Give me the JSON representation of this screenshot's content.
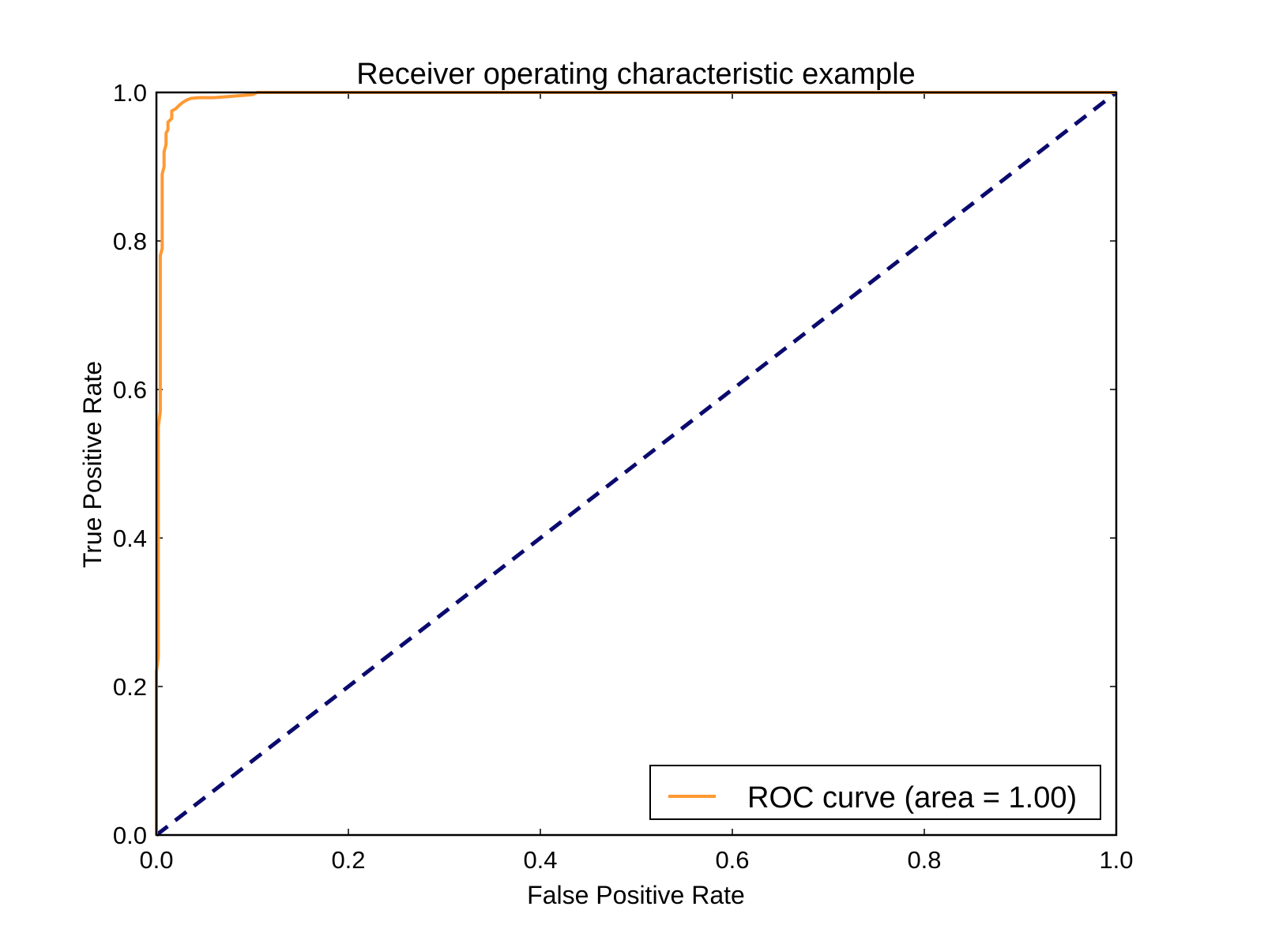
{
  "chart_data": {
    "type": "line",
    "title": "Receiver operating characteristic example",
    "xlabel": "False Positive Rate",
    "ylabel": "True Positive Rate",
    "xlim": [
      0.0,
      1.0
    ],
    "ylim": [
      0.0,
      1.0
    ],
    "xticks": [
      "0.0",
      "0.2",
      "0.4",
      "0.6",
      "0.8",
      "1.0"
    ],
    "yticks": [
      "0.0",
      "0.2",
      "0.4",
      "0.6",
      "0.8",
      "1.0"
    ],
    "grid": false,
    "legend_position": "lower-right",
    "series": [
      {
        "name": "ROC curve (area = 1.00)",
        "color": "#ff9933",
        "style": "solid",
        "points": [
          [
            0.0,
            0.0
          ],
          [
            0.0,
            0.22
          ],
          [
            0.002,
            0.24
          ],
          [
            0.002,
            0.55
          ],
          [
            0.004,
            0.57
          ],
          [
            0.004,
            0.78
          ],
          [
            0.006,
            0.79
          ],
          [
            0.006,
            0.89
          ],
          [
            0.008,
            0.9
          ],
          [
            0.008,
            0.92
          ],
          [
            0.01,
            0.93
          ],
          [
            0.01,
            0.945
          ],
          [
            0.012,
            0.95
          ],
          [
            0.012,
            0.96
          ],
          [
            0.016,
            0.965
          ],
          [
            0.016,
            0.975
          ],
          [
            0.02,
            0.978
          ],
          [
            0.024,
            0.983
          ],
          [
            0.028,
            0.987
          ],
          [
            0.032,
            0.99
          ],
          [
            0.036,
            0.992
          ],
          [
            0.044,
            0.993
          ],
          [
            0.06,
            0.993
          ],
          [
            0.08,
            0.995
          ],
          [
            0.1,
            0.997
          ],
          [
            0.105,
            1.0
          ],
          [
            1.0,
            1.0
          ]
        ]
      },
      {
        "name": "",
        "color": "#0a0a6e",
        "style": "dashed",
        "points": [
          [
            0.0,
            0.0
          ],
          [
            1.0,
            1.0
          ]
        ]
      }
    ]
  }
}
